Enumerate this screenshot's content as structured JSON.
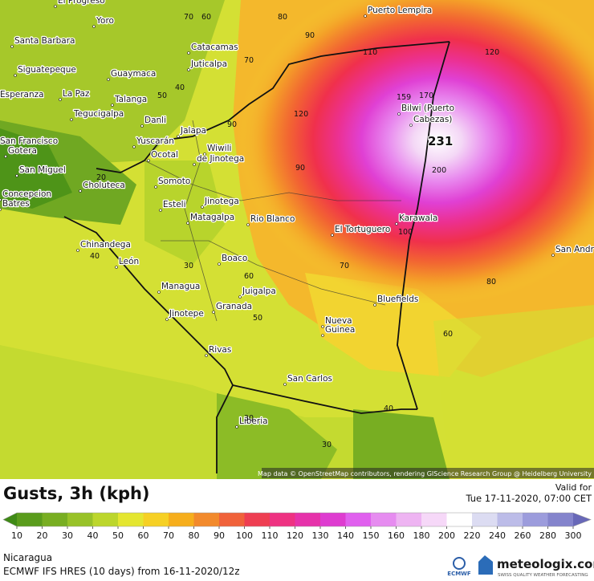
{
  "map": {
    "cities": [
      "El Progreso",
      "Yoro",
      "Santa Barbara",
      "Catacamas",
      "Puerto Lempira",
      "Siguatepeque",
      "Juticalpa",
      "Guaymaca",
      "Esperanza",
      "La Paz",
      "Talanga",
      "Tegucigalpa",
      "Danli",
      "Bilwi (Puerto",
      "Cabezas)",
      "Jalapa",
      "San Francisco",
      "Yuscarán",
      "Gotera",
      "Ocotal",
      "Wiwili",
      "de Jinotega",
      "San Miguel",
      "Somoto",
      "Choluteca",
      "Concepcion",
      "Batres",
      "Jinotega",
      "Esteli",
      "Matagalpa",
      "Rio Blanco",
      "Karawala",
      "El Tortuguero",
      "San Andr",
      "Chinandega",
      "León",
      "Boaco",
      "Managua",
      "Juigalpa",
      "Bluefields",
      "Granada",
      "Jinotepe",
      "Nueva",
      "Guinea",
      "Rivas",
      "San Carlos",
      "Liberia"
    ],
    "contours": [
      "70",
      "60",
      "80",
      "90",
      "110",
      "120",
      "70",
      "40",
      "50",
      "159",
      "170",
      "120",
      "90",
      "200",
      "90",
      "20",
      "100",
      "40",
      "30",
      "60",
      "70",
      "80",
      "50",
      "60",
      "40",
      "30",
      "30"
    ],
    "max_label": "231",
    "attribution": "Map data © OpenStreetMap contributors, rendering GIScience Research Group @ Heidelberg University"
  },
  "legend": {
    "title": "Gusts, 3h (kph)",
    "valid_label": "Valid for",
    "valid_time": "Tue 17-11-2020, 07:00 CET",
    "ticks": [
      10,
      20,
      30,
      40,
      50,
      60,
      70,
      80,
      90,
      100,
      110,
      120,
      130,
      140,
      150,
      160,
      180,
      200,
      220,
      240,
      260,
      280,
      300
    ],
    "colors": [
      "#3f8a16",
      "#5a9c1c",
      "#78ae22",
      "#98c228",
      "#bcd62c",
      "#e4e630",
      "#f6d024",
      "#f6ae1c",
      "#f28a2c",
      "#f0623a",
      "#ee3e52",
      "#ee3282",
      "#e632aa",
      "#de3cd0",
      "#e060ee",
      "#e68cf0",
      "#eeb4f2",
      "#f6d8f8",
      "#ffffff",
      "#dcdcf2",
      "#bcbce8",
      "#9c9cdc",
      "#8484cc",
      "#6868b8"
    ]
  },
  "footer": {
    "region": "Nicaragua",
    "model": "ECMWF IFS HRES (10 days) from 16-11-2020/12z",
    "ecmwf": "ECMWF",
    "brand": "meteologix.com",
    "tagline": "SWISS QUALITY WEATHER FORECASTING"
  }
}
